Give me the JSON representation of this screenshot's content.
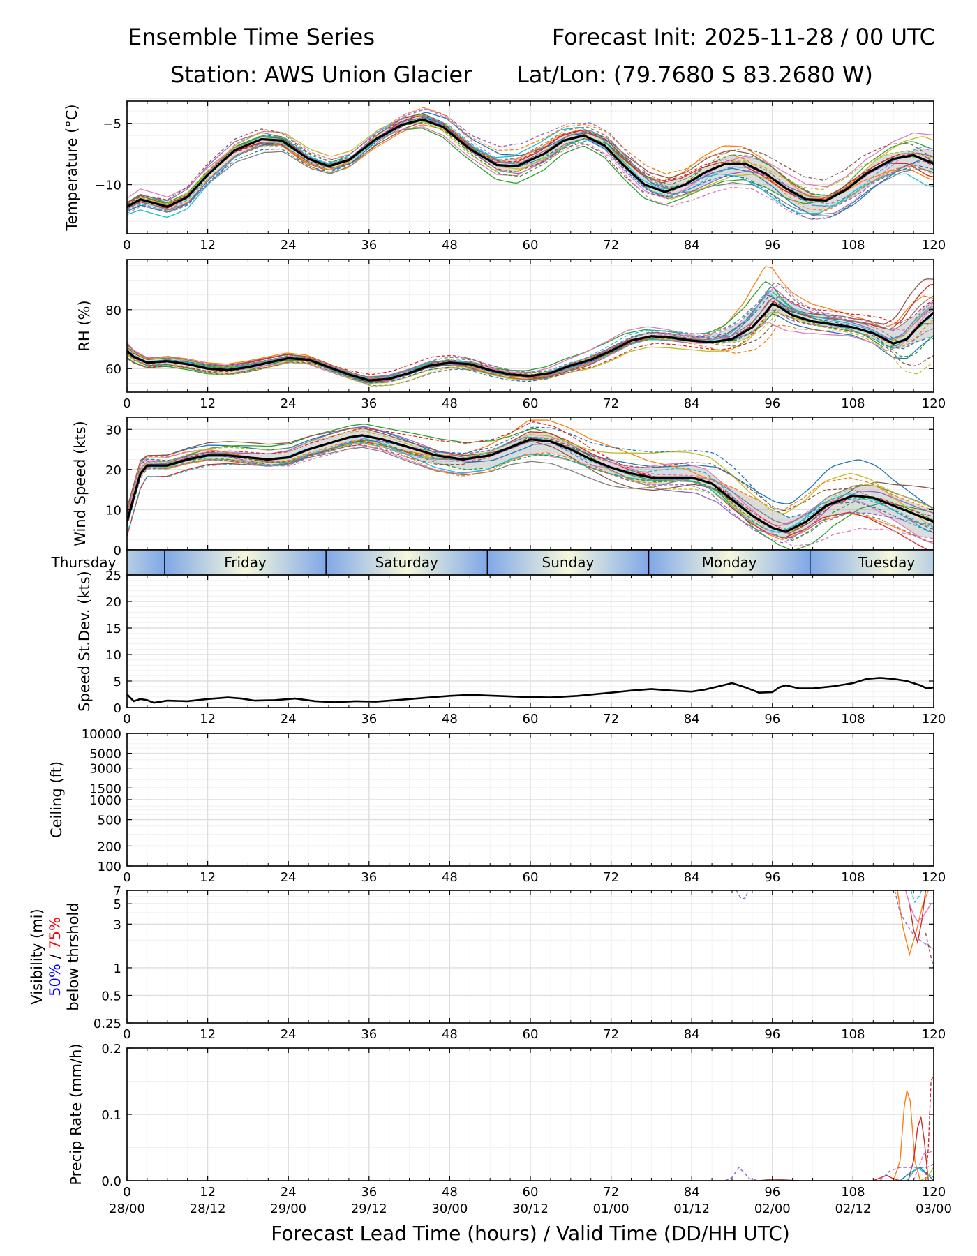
{
  "header": {
    "title_left": "Ensemble Time Series",
    "title_right": "Forecast Init: 2025-11-28 / 00 UTC",
    "station": "Station: AWS Union Glacier",
    "latlon": "Lat/Lon: (79.7680 S 83.2680 W)"
  },
  "xaxis": {
    "ticks": [
      0,
      12,
      24,
      36,
      48,
      60,
      72,
      84,
      96,
      108,
      120
    ],
    "valid_time_labels": [
      "28/00",
      "28/12",
      "29/00",
      "29/12",
      "30/00",
      "30/12",
      "01/00",
      "01/12",
      "02/00",
      "02/12",
      "03/00"
    ],
    "xlabel": "Forecast Lead Time (hours) / Valid Time (DD/HH UTC)",
    "xlim": [
      0,
      120
    ]
  },
  "days_strip": {
    "labels": [
      "Thursday",
      "Friday",
      "Saturday",
      "Sunday",
      "Monday",
      "Tuesday"
    ],
    "boundaries_hours": [
      5.6,
      29.6,
      53.6,
      77.6,
      101.6
    ]
  },
  "member_colors": [
    "#1f77b4",
    "#ff7f0e",
    "#2ca02c",
    "#d62728",
    "#9467bd",
    "#8c564b",
    "#e377c2",
    "#7f7f7f",
    "#bcbd22",
    "#17becf"
  ],
  "chart_data": [
    {
      "type": "line",
      "name": "temperature",
      "ylabel": "Temperature (°C)",
      "ylim": [
        -14,
        -3.2
      ],
      "yticks": [
        -5,
        -10
      ],
      "x": [
        0,
        2,
        6,
        9,
        12,
        16,
        20,
        23,
        27,
        30,
        33,
        37,
        41,
        44,
        47,
        51,
        55,
        58,
        62,
        65,
        68,
        71,
        74,
        77,
        80,
        83,
        86,
        89,
        92,
        95,
        98,
        101,
        104,
        107,
        110,
        114,
        117,
        120
      ],
      "mean": [
        -11.8,
        -11.2,
        -11.8,
        -11.0,
        -9.2,
        -7.2,
        -6.3,
        -6.4,
        -7.9,
        -8.5,
        -8.0,
        -6.3,
        -5.1,
        -4.7,
        -5.3,
        -7.1,
        -8.4,
        -8.5,
        -7.5,
        -6.4,
        -6.0,
        -6.8,
        -8.5,
        -10.0,
        -10.6,
        -10.0,
        -9.0,
        -8.3,
        -8.3,
        -9.1,
        -10.3,
        -11.2,
        -11.3,
        -10.4,
        -9.1,
        -7.9,
        -7.6,
        -8.3
      ],
      "spread_scale": [
        0.4,
        0.5,
        0.5,
        0.6,
        0.6,
        0.6,
        0.6,
        0.5,
        0.5,
        0.5,
        0.5,
        0.6,
        0.7,
        0.7,
        0.6,
        0.5,
        0.6,
        0.7,
        0.7,
        0.6,
        0.5,
        0.6,
        0.7,
        0.8,
        0.8,
        0.8,
        1.0,
        1.1,
        1.1,
        1.1,
        1.1,
        1.0,
        0.9,
        0.9,
        1.0,
        1.1,
        1.2,
        1.3
      ]
    },
    {
      "type": "line",
      "name": "relative_humidity",
      "ylabel": "RH (%)",
      "ylim": [
        52,
        97
      ],
      "yticks": [
        60,
        80
      ],
      "x": [
        0,
        1,
        3,
        6,
        9,
        12,
        15,
        18,
        21,
        24,
        27,
        30,
        33,
        36,
        39,
        42,
        45,
        48,
        51,
        54,
        57,
        60,
        63,
        66,
        69,
        72,
        75,
        78,
        81,
        84,
        87,
        90,
        93,
        95,
        96,
        97,
        99,
        102,
        105,
        108,
        111,
        114,
        116,
        118,
        120
      ],
      "mean": [
        66,
        64,
        62,
        62.5,
        61.5,
        60,
        59.5,
        60.5,
        62,
        63.5,
        63,
        60.5,
        58,
        56,
        56.5,
        58.5,
        61,
        62,
        61.5,
        59.5,
        58,
        57.5,
        58.5,
        61,
        63,
        66,
        69.5,
        71,
        70.5,
        69.5,
        69,
        70,
        74,
        79,
        82,
        81,
        78,
        76,
        75,
        74,
        72,
        68.5,
        70,
        75,
        79
      ],
      "spread_scale": [
        1.5,
        1.2,
        1.0,
        1.0,
        1.0,
        1.0,
        1.0,
        1.0,
        1.0,
        1.0,
        1.0,
        1.0,
        1.0,
        1.2,
        1.3,
        1.4,
        1.5,
        1.5,
        1.5,
        1.3,
        1.2,
        1.2,
        1.3,
        1.5,
        1.8,
        2.0,
        2.0,
        2.0,
        2.0,
        2.0,
        2.5,
        4.0,
        5.5,
        6.0,
        6.0,
        5.0,
        3.5,
        2.5,
        2.2,
        2.0,
        2.5,
        3.5,
        5.0,
        6.0,
        6.5
      ]
    },
    {
      "type": "line",
      "name": "wind_speed",
      "ylabel": "Wind Speed (kts)",
      "ylim": [
        0,
        33
      ],
      "yticks": [
        0,
        10,
        20,
        30
      ],
      "x": [
        0,
        1,
        2,
        3,
        6,
        9,
        12,
        15,
        18,
        21,
        24,
        27,
        30,
        33,
        35,
        38,
        42,
        46,
        50,
        54,
        57,
        60,
        63,
        66,
        69,
        72,
        75,
        78,
        81,
        84,
        87,
        90,
        93,
        96,
        98,
        101,
        104,
        108,
        111,
        114,
        117,
        120
      ],
      "mean": [
        7.0,
        13.0,
        19.0,
        21.0,
        21.0,
        22.5,
        23.5,
        23.5,
        23.0,
        22.5,
        23.0,
        25.0,
        26.5,
        28.0,
        28.5,
        27.5,
        25.5,
        23.5,
        22.5,
        23.5,
        25.5,
        27.5,
        27.0,
        25.0,
        22.5,
        20.5,
        19.0,
        18.0,
        18.0,
        18.0,
        16.5,
        12.5,
        8.5,
        5.5,
        4.5,
        7.0,
        11.0,
        13.5,
        13.0,
        11.0,
        9.0,
        7.0
      ],
      "spread_scale": [
        2.0,
        2.0,
        2.0,
        1.5,
        1.5,
        1.5,
        1.5,
        1.5,
        1.5,
        1.5,
        1.5,
        1.5,
        1.5,
        1.5,
        1.5,
        1.5,
        1.8,
        2.0,
        2.0,
        2.0,
        2.0,
        2.5,
        2.5,
        2.5,
        2.5,
        2.8,
        3.0,
        3.0,
        3.0,
        3.0,
        3.5,
        4.0,
        4.0,
        3.5,
        3.5,
        4.0,
        4.5,
        4.5,
        4.5,
        4.0,
        4.0,
        4.0
      ]
    },
    {
      "type": "line",
      "name": "speed_stdev",
      "ylabel": "Speed St.Dev. (kts)",
      "ylim": [
        0,
        25
      ],
      "yticks": [
        0,
        5,
        10,
        15,
        20,
        25
      ],
      "x": [
        0,
        1,
        2,
        3,
        4,
        6,
        9,
        12,
        15,
        17,
        19,
        22,
        25,
        28,
        31,
        34,
        37,
        40,
        44,
        48,
        51,
        55,
        59,
        63,
        67,
        72,
        75,
        78,
        81,
        84,
        86,
        88,
        90,
        92,
        94,
        96,
        97,
        98,
        100,
        102,
        105,
        108,
        110,
        112,
        114,
        116,
        118,
        119,
        120
      ],
      "values": [
        2.5,
        1.2,
        1.6,
        1.4,
        0.9,
        1.3,
        1.2,
        1.6,
        1.9,
        1.7,
        1.3,
        1.4,
        1.7,
        1.2,
        1.0,
        1.2,
        1.1,
        1.4,
        1.8,
        2.2,
        2.4,
        2.2,
        2.0,
        1.9,
        2.2,
        2.8,
        3.2,
        3.5,
        3.2,
        3.0,
        3.4,
        4.0,
        4.6,
        3.8,
        2.8,
        2.9,
        3.8,
        4.2,
        3.6,
        3.6,
        4.0,
        4.6,
        5.4,
        5.6,
        5.4,
        5.0,
        4.2,
        3.6,
        3.8
      ]
    },
    {
      "type": "line",
      "name": "ceiling",
      "ylabel": "Ceiling (ft)",
      "scale": "log",
      "ylim": [
        100,
        10000
      ],
      "ytick_labels": [
        "100",
        "200",
        "500",
        "1000",
        "1500",
        "3000",
        "5000",
        "10000"
      ],
      "series": []
    },
    {
      "type": "line",
      "name": "visibility",
      "ylabel": "Visibility (mi)",
      "ylabel_pct50": "50%",
      "ylabel_sep": " / ",
      "ylabel_pct75": "75%",
      "ylabel_line3": "below thrshold",
      "scale": "log",
      "ylim": [
        0.25,
        7
      ],
      "ytick_labels": [
        "0.25",
        "0.5",
        "1",
        "3",
        "5",
        "7"
      ],
      "series": [
        {
          "color": "#9467bd",
          "dash": true,
          "x": [
            90.6,
            91.4,
            92.0,
            92.4
          ],
          "values": [
            7.0,
            5.6,
            5.8,
            7.0
          ]
        },
        {
          "color": "#ff7f0e",
          "dash": false,
          "x": [
            114.6,
            115.4,
            116.4,
            117.4,
            118.4,
            119.2
          ],
          "values": [
            7.0,
            2.8,
            1.4,
            2.5,
            5.0,
            7.0
          ]
        },
        {
          "color": "#d62728",
          "dash": false,
          "x": [
            116.4,
            117.0,
            117.6,
            118.2,
            118.8
          ],
          "values": [
            5.0,
            2.6,
            1.9,
            3.2,
            7.0
          ]
        },
        {
          "color": "#e377c2",
          "dash": false,
          "x": [
            115.8,
            116.4,
            117.0,
            117.6,
            118.4,
            119.6
          ],
          "values": [
            7.0,
            5.0,
            3.8,
            3.2,
            3.6,
            5.0
          ]
        },
        {
          "color": "#17becf",
          "dash": true,
          "x": [
            116.6,
            117.2,
            117.8,
            118.2
          ],
          "values": [
            7.0,
            5.2,
            6.0,
            7.0
          ]
        },
        {
          "color": "#9467bd",
          "dash": true,
          "x": [
            114.2,
            115.0,
            116.2,
            117.2,
            118.4,
            120.0
          ],
          "values": [
            7.0,
            4.0,
            2.8,
            2.2,
            1.9,
            1.6
          ]
        },
        {
          "color": "#8c564b",
          "dash": true,
          "x": [
            118.8,
            119.4,
            120.0
          ],
          "values": [
            2.4,
            1.5,
            1.0
          ]
        }
      ]
    },
    {
      "type": "line",
      "name": "precip_rate",
      "ylabel": "Precip Rate (mm/h)",
      "ylim": [
        0,
        0.2
      ],
      "yticks": [
        0.0,
        0.1,
        0.2
      ],
      "series": [
        {
          "color": "#9467bd",
          "dash": true,
          "x": [
            89,
            90,
            91,
            91.8,
            92.6,
            94
          ],
          "values": [
            0,
            0.005,
            0.02,
            0.012,
            0.003,
            0
          ]
        },
        {
          "color": "#8c564b",
          "dash": false,
          "x": [
            94,
            96,
            98,
            100
          ],
          "values": [
            0,
            0.002,
            0.001,
            0
          ]
        },
        {
          "color": "#d62728",
          "dash": false,
          "x": [
            111,
            112,
            113,
            114,
            115
          ],
          "values": [
            0,
            0.004,
            0.008,
            0.003,
            0
          ]
        },
        {
          "color": "#ff7f0e",
          "dash": false,
          "x": [
            114,
            115,
            115.6,
            116.0,
            116.5,
            117.2,
            118
          ],
          "values": [
            0,
            0.03,
            0.11,
            0.136,
            0.12,
            0.03,
            0
          ]
        },
        {
          "color": "#d62728",
          "dash": false,
          "x": [
            116.2,
            117,
            117.6,
            118.1,
            118.6,
            119.2
          ],
          "values": [
            0,
            0.03,
            0.08,
            0.096,
            0.06,
            0
          ]
        },
        {
          "color": "#9467bd",
          "dash": true,
          "x": [
            112,
            113.5,
            115,
            117,
            119,
            120
          ],
          "values": [
            0,
            0.015,
            0.02,
            0.02,
            0.02,
            0.025
          ]
        },
        {
          "color": "#1f77b4",
          "dash": false,
          "x": [
            115,
            116.5,
            118,
            119,
            120
          ],
          "values": [
            0,
            0.012,
            0.02,
            0.01,
            0
          ]
        },
        {
          "color": "#17becf",
          "dash": false,
          "x": [
            116,
            117.5,
            119,
            120
          ],
          "values": [
            0,
            0.02,
            0.01,
            0.005
          ]
        },
        {
          "color": "#e377c2",
          "dash": true,
          "x": [
            117,
            118.5,
            120
          ],
          "values": [
            0,
            0.04,
            0.045
          ]
        },
        {
          "color": "#d62728",
          "dash": true,
          "x": [
            118.8,
            119.2,
            119.6,
            120
          ],
          "values": [
            0,
            0.05,
            0.15,
            0.16
          ]
        },
        {
          "color": "#bcbd22",
          "dash": false,
          "x": [
            118,
            119,
            120
          ],
          "values": [
            0,
            0.005,
            0.02
          ]
        }
      ]
    }
  ]
}
